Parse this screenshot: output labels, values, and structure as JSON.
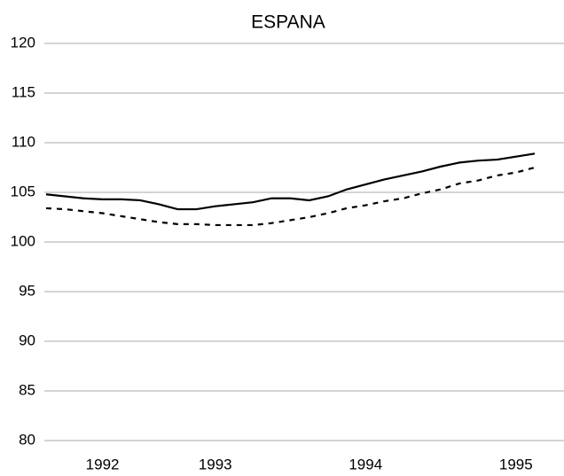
{
  "chart_data": {
    "type": "line",
    "title": "ESPANA",
    "categories": [
      null,
      null,
      null,
      "1992",
      null,
      null,
      null,
      null,
      null,
      "1993",
      null,
      null,
      null,
      null,
      null,
      null,
      null,
      "1994",
      null,
      null,
      null,
      null,
      null,
      null,
      null,
      "1995",
      null
    ],
    "series": [
      {
        "color": "#000000",
        "style": "solid",
        "values": [
          104.8,
          104.6,
          104.4,
          104.3,
          104.3,
          104.2,
          103.8,
          103.3,
          103.3,
          103.6,
          103.8,
          104.0,
          104.4,
          104.4,
          104.2,
          104.6,
          105.3,
          105.8,
          106.3,
          106.7,
          107.1,
          107.6,
          108.0,
          108.2,
          108.3,
          108.6,
          108.9
        ]
      },
      {
        "color": "#000000",
        "style": "dashed",
        "values": [
          103.4,
          103.3,
          103.1,
          102.9,
          102.6,
          102.3,
          102.0,
          101.8,
          101.8,
          101.7,
          101.7,
          101.7,
          101.9,
          102.2,
          102.5,
          102.9,
          103.4,
          103.7,
          104.1,
          104.4,
          104.9,
          105.3,
          105.9,
          106.2,
          106.7,
          107.0,
          107.5
        ]
      }
    ],
    "ylim": [
      80,
      120
    ],
    "yticks": [
      80,
      85,
      90,
      95,
      100,
      105,
      110,
      115,
      120
    ],
    "grid": true
  }
}
